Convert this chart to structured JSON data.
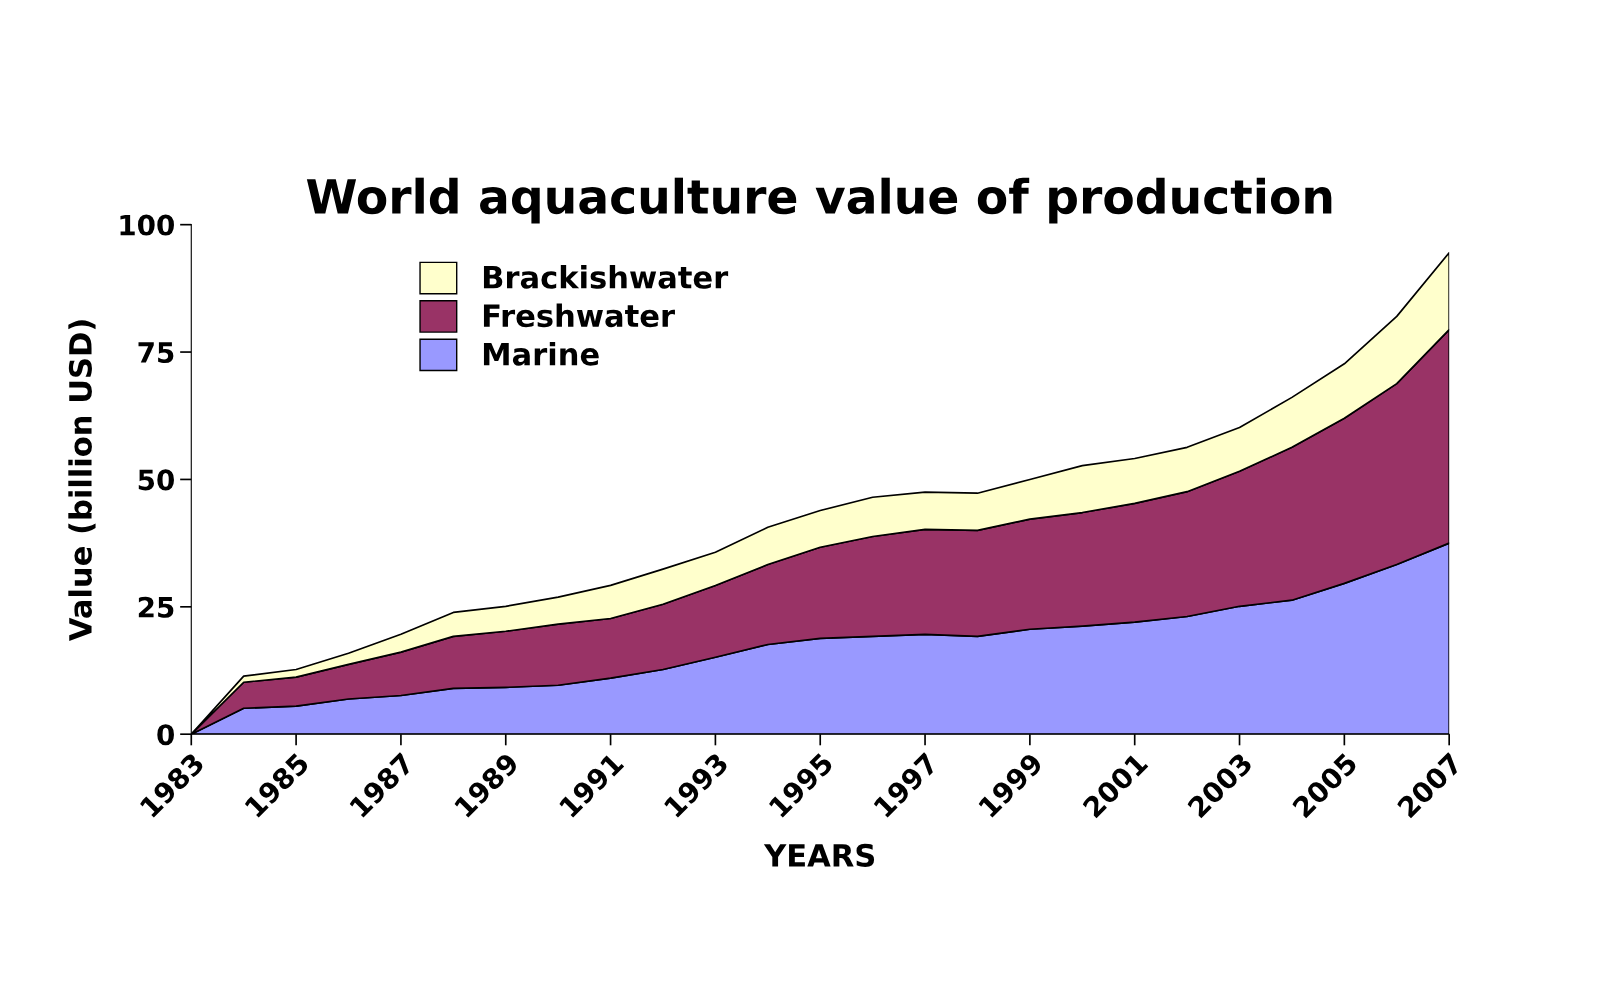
{
  "chart_data": {
    "type": "area",
    "stacked": true,
    "title": "World aquaculture value of production",
    "xlabel": "YEARS",
    "ylabel": "Value (billion USD)",
    "x": [
      1983,
      1984,
      1985,
      1986,
      1987,
      1988,
      1989,
      1990,
      1991,
      1992,
      1993,
      1994,
      1995,
      1996,
      1997,
      1998,
      1999,
      2000,
      2001,
      2002,
      2003,
      2004,
      2005,
      2006,
      2007
    ],
    "series": [
      {
        "name": "Marine",
        "color": "#9999ff",
        "values": [
          0,
          5.1,
          5.5,
          6.9,
          7.6,
          9.0,
          9.2,
          9.6,
          11.0,
          12.7,
          15.1,
          17.6,
          18.8,
          19.2,
          19.6,
          19.2,
          20.6,
          21.2,
          22.0,
          23.1,
          25.1,
          26.3,
          29.6,
          33.3,
          37.5
        ]
      },
      {
        "name": "Freshwater",
        "color": "#993366",
        "values": [
          0,
          5.1,
          5.7,
          6.8,
          8.5,
          10.2,
          11.0,
          12.0,
          11.7,
          12.8,
          14.1,
          15.7,
          17.9,
          19.6,
          20.6,
          20.8,
          21.6,
          22.3,
          23.3,
          24.5,
          26.5,
          30.0,
          32.4,
          35.5,
          41.9
        ]
      },
      {
        "name": "Brackishwater",
        "color": "#ffffcc",
        "values": [
          0,
          1.2,
          1.5,
          2.2,
          3.5,
          4.7,
          4.9,
          5.3,
          6.5,
          6.9,
          6.5,
          7.3,
          7.2,
          7.7,
          7.3,
          7.3,
          7.8,
          9.2,
          8.8,
          8.7,
          8.6,
          9.8,
          10.7,
          13.2,
          15.1
        ]
      }
    ],
    "xlim": [
      1983,
      2007
    ],
    "xticks": [
      1983,
      1985,
      1987,
      1989,
      1991,
      1993,
      1995,
      1997,
      1999,
      2001,
      2003,
      2005,
      2007
    ],
    "ylim": [
      0,
      100
    ],
    "yticks": [
      0,
      25,
      50,
      75,
      100
    ],
    "grid": false,
    "legend": "top left"
  }
}
